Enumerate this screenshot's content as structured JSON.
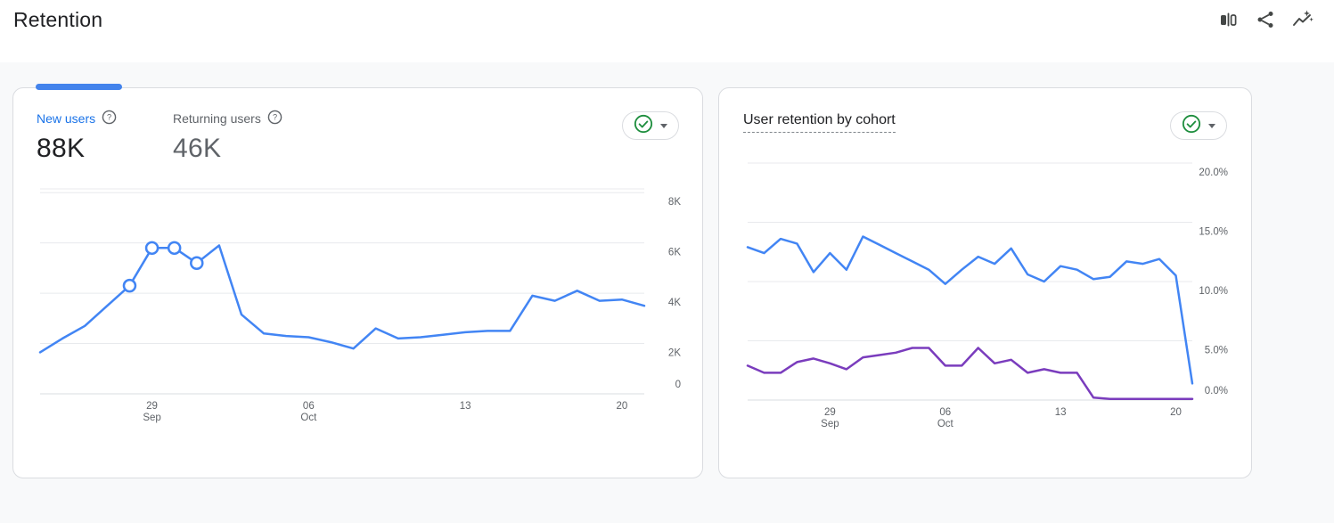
{
  "page_title": "Retention",
  "header": {
    "icons": [
      {
        "name": "comparison-icon"
      },
      {
        "name": "share-icon"
      },
      {
        "name": "insights-icon"
      }
    ]
  },
  "colors": {
    "page_bg": "#f8f9fa",
    "card_bg": "#ffffff",
    "card_border": "#dadce0",
    "accent_blue": "#1a73e8",
    "tab_indicator": "#4383ec",
    "line_blue": "#4285f4",
    "line_purple": "#7a3cbd",
    "check_green": "#1e8e3e",
    "text_primary": "#202124",
    "text_secondary": "#5f6368",
    "gridline": "#e8eaed",
    "axis_line": "#dadce0"
  },
  "left_card": {
    "tabs": [
      {
        "label": "New users",
        "value": "88K",
        "selected": true,
        "help_icon": "help-circle-icon"
      },
      {
        "label": "Returning users",
        "value": "46K",
        "selected": false,
        "help_icon": "help-circle-icon"
      }
    ],
    "quality_badge": {
      "icon": "check-circle-icon",
      "caret": "caret-down-icon"
    }
  },
  "right_card": {
    "title": "User retention by cohort",
    "quality_badge": {
      "icon": "check-circle-icon",
      "caret": "caret-down-icon"
    }
  },
  "chart_data": [
    {
      "type": "line",
      "title": "New users over time",
      "x": [
        "Sep 24",
        "Sep 25",
        "Sep 26",
        "Sep 27",
        "Sep 28",
        "Sep 29",
        "Sep 30",
        "Oct 1",
        "Oct 2",
        "Oct 3",
        "Oct 4",
        "Oct 5",
        "Oct 6",
        "Oct 7",
        "Oct 8",
        "Oct 9",
        "Oct 10",
        "Oct 11",
        "Oct 12",
        "Oct 13",
        "Oct 14",
        "Oct 15",
        "Oct 16",
        "Oct 17",
        "Oct 18",
        "Oct 19",
        "Oct 20",
        "Oct 21"
      ],
      "series": [
        {
          "name": "New users",
          "color": "#4285f4",
          "values": [
            1650,
            2200,
            2700,
            3500,
            4300,
            5800,
            5800,
            5200,
            5900,
            3150,
            2400,
            2300,
            2250,
            2050,
            1800,
            2600,
            2200,
            2250,
            2350,
            2450,
            2500,
            2500,
            3900,
            3700,
            4100,
            3700,
            3750,
            3500
          ],
          "marker_indices": [
            4,
            5,
            6,
            7
          ]
        }
      ],
      "ylim": [
        0,
        8150
      ],
      "yticks": [
        {
          "value": 0,
          "label": "0"
        },
        {
          "value": 2000,
          "label": "2K"
        },
        {
          "value": 4000,
          "label": "4K"
        },
        {
          "value": 6000,
          "label": "6K"
        },
        {
          "value": 8000,
          "label": "8K"
        }
      ],
      "xticks": [
        {
          "index": 5,
          "line1": "29",
          "line2": "Sep"
        },
        {
          "index": 12,
          "line1": "06",
          "line2": "Oct"
        },
        {
          "index": 19,
          "line1": "13"
        },
        {
          "index": 26,
          "line1": "20"
        }
      ],
      "legend": "none",
      "grid": true,
      "yaxis_side": "right"
    },
    {
      "type": "line",
      "title": "User retention by cohort",
      "x": [
        "Sep 24",
        "Sep 25",
        "Sep 26",
        "Sep 27",
        "Sep 28",
        "Sep 29",
        "Sep 30",
        "Oct 1",
        "Oct 2",
        "Oct 3",
        "Oct 4",
        "Oct 5",
        "Oct 6",
        "Oct 7",
        "Oct 8",
        "Oct 9",
        "Oct 10",
        "Oct 11",
        "Oct 12",
        "Oct 13",
        "Oct 14",
        "Oct 15",
        "Oct 16",
        "Oct 17",
        "Oct 18",
        "Oct 19",
        "Oct 20",
        "Oct 21"
      ],
      "series": [
        {
          "name": "retention-series-blue",
          "color": "#4285f4",
          "values": [
            12.9,
            12.4,
            13.6,
            13.2,
            10.8,
            12.4,
            11.0,
            13.8,
            13.1,
            12.4,
            11.7,
            11.0,
            9.8,
            11.0,
            12.1,
            11.5,
            12.8,
            10.6,
            10.0,
            11.3,
            11.0,
            10.2,
            10.4,
            11.7,
            11.5,
            11.9,
            10.5,
            1.4
          ],
          "marker_indices": []
        },
        {
          "name": "retention-series-purple",
          "color": "#7a3cbd",
          "values": [
            2.9,
            2.3,
            2.3,
            3.2,
            3.5,
            3.1,
            2.6,
            3.6,
            3.8,
            4.0,
            4.4,
            4.4,
            2.9,
            2.9,
            4.4,
            3.1,
            3.4,
            2.3,
            2.6,
            2.3,
            2.3,
            0.2,
            0.1,
            0.1,
            0.1,
            0.1,
            0.1,
            0.1
          ],
          "marker_indices": []
        }
      ],
      "ylim": [
        0,
        20
      ],
      "yticks": [
        {
          "value": 0,
          "label": "0.0%"
        },
        {
          "value": 5,
          "label": "5.0%"
        },
        {
          "value": 10,
          "label": "10.0%"
        },
        {
          "value": 15,
          "label": "15.0%"
        },
        {
          "value": 20,
          "label": "20.0%"
        }
      ],
      "xticks": [
        {
          "index": 5,
          "line1": "29",
          "line2": "Sep"
        },
        {
          "index": 12,
          "line1": "06",
          "line2": "Oct"
        },
        {
          "index": 19,
          "line1": "13"
        },
        {
          "index": 26,
          "line1": "20"
        }
      ],
      "legend": "none",
      "grid": true,
      "yaxis_side": "right"
    }
  ]
}
